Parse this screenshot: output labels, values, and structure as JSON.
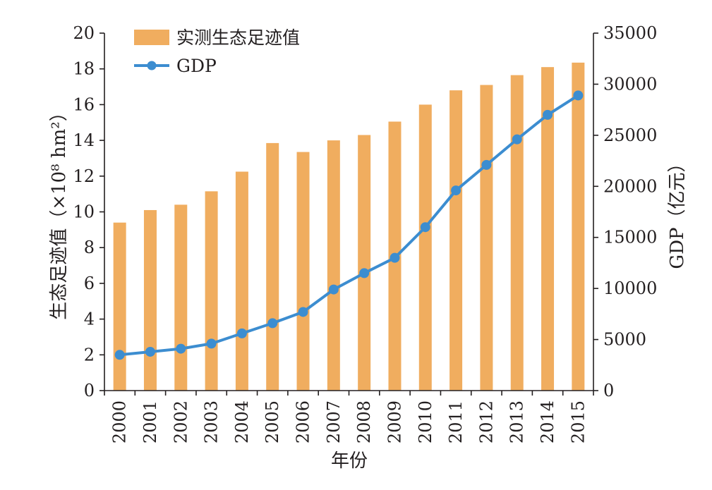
{
  "chart_data": {
    "type": "bar",
    "categories": [
      "2000",
      "2001",
      "2002",
      "2003",
      "2004",
      "2005",
      "2006",
      "2007",
      "2008",
      "2009",
      "2010",
      "2011",
      "2012",
      "2013",
      "2014",
      "2015"
    ],
    "series": [
      {
        "name": "实测生态足迹值",
        "type": "bar",
        "axis": "left",
        "color": "#f0ad5f",
        "values": [
          9.4,
          10.1,
          10.4,
          11.15,
          12.25,
          13.85,
          13.35,
          14.0,
          14.3,
          15.05,
          16.0,
          16.8,
          17.1,
          17.65,
          18.1,
          18.35
        ]
      },
      {
        "name": "GDP",
        "type": "line",
        "axis": "right",
        "color": "#3c8dd0",
        "values": [
          3500,
          3800,
          4100,
          4600,
          5600,
          6600,
          7700,
          9900,
          11500,
          13000,
          16000,
          19600,
          22100,
          24600,
          27000,
          28900
        ]
      }
    ],
    "y_left": {
      "label": "生态足迹值（×10⁸ hm²）",
      "ylim": [
        0,
        20
      ],
      "ticks": [
        "0",
        "2",
        "4",
        "6",
        "8",
        "10",
        "12",
        "14",
        "16",
        "18",
        "20"
      ]
    },
    "y_right": {
      "label": "GDP（亿元）",
      "ylim": [
        0,
        35000
      ],
      "ticks": [
        "0",
        "5000",
        "10000",
        "15000",
        "20000",
        "25000",
        "30000",
        "35000"
      ]
    },
    "xlabel": "年份",
    "legend_position": "top-left",
    "grid": false
  }
}
